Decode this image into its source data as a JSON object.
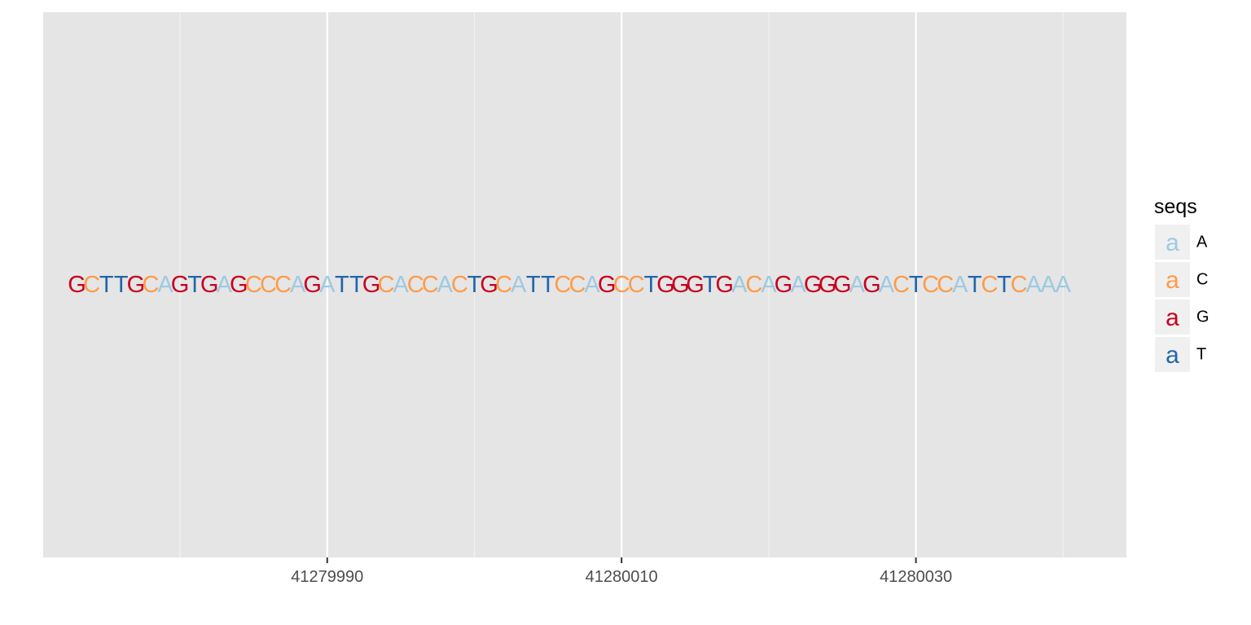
{
  "chart_data": {
    "type": "scatter",
    "title": "",
    "xlabel": "",
    "ylabel": "",
    "x_start": 41279973,
    "xlim": [
      41279970.7,
      41280044.3
    ],
    "x_ticks": [
      41279990,
      41280010,
      41280030
    ],
    "x_tick_labels": [
      "41279990",
      "41280010",
      "41280030"
    ],
    "x_minor_ticks": [
      41279980,
      41280000,
      41280020,
      41280040
    ],
    "grid": true,
    "sequence": "GCTTGCAGTGAGCCCAGATTGCACCACTGCATTCCAGCCTGGGTGACAGAGGGAGACTCCATCTCAAA",
    "legend": {
      "title": "seqs",
      "position": "right",
      "key_glyph": "a",
      "entries": [
        {
          "label": "A",
          "color": "#9ecae1"
        },
        {
          "label": "C",
          "color": "#fd9c4a"
        },
        {
          "label": "G",
          "color": "#c8001f"
        },
        {
          "label": "T",
          "color": "#2166ac"
        }
      ]
    }
  },
  "colors": {
    "panel_background": "#e5e5e5",
    "grid_major": "#ffffff",
    "grid_minor": "#f2f2f2",
    "legend_key_background": "#f0f0f0"
  }
}
